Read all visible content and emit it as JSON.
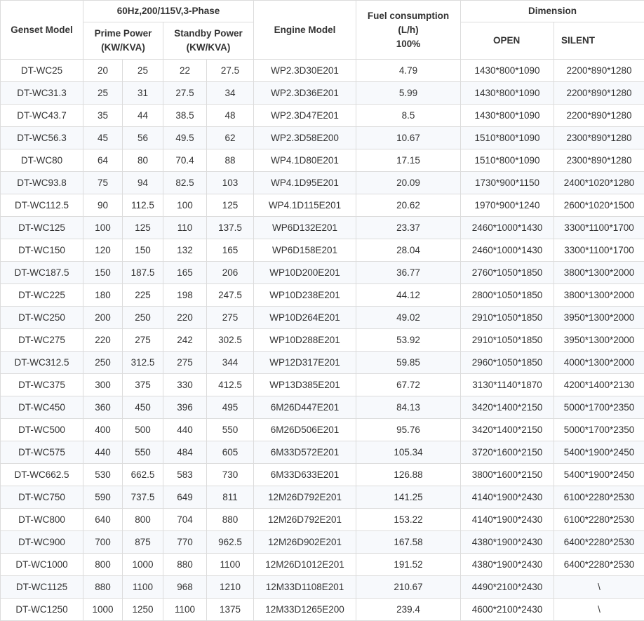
{
  "header": {
    "genset_model": "Genset Model",
    "phase_group": "60Hz,200/115V,3-Phase",
    "prime_power": "Prime Power\n(KW/KVA)",
    "standby_power": "Standby Power\n(KW/KVA)",
    "engine_model": "Engine Model",
    "fuel_consumption": "Fuel consumption\n(L/h)\n100%",
    "dimension": "Dimension",
    "open": "OPEN",
    "silent": "SILENT"
  },
  "rows": [
    [
      "DT-WC25",
      "20",
      "25",
      "22",
      "27.5",
      "WP2.3D30E201",
      "4.79",
      "1430*800*1090",
      "2200*890*1280"
    ],
    [
      "DT-WC31.3",
      "25",
      "31",
      "27.5",
      "34",
      "WP2.3D36E201",
      "5.99",
      "1430*800*1090",
      "2200*890*1280"
    ],
    [
      "DT-WC43.7",
      "35",
      "44",
      "38.5",
      "48",
      "WP2.3D47E201",
      "8.5",
      "1430*800*1090",
      "2200*890*1280"
    ],
    [
      "DT-WC56.3",
      "45",
      "56",
      "49.5",
      "62",
      "WP2.3D58E200",
      "10.67",
      "1510*800*1090",
      "2300*890*1280"
    ],
    [
      "DT-WC80",
      "64",
      "80",
      "70.4",
      "88",
      "WP4.1D80E201",
      "17.15",
      "1510*800*1090",
      "2300*890*1280"
    ],
    [
      "DT-WC93.8",
      "75",
      "94",
      "82.5",
      "103",
      "WP4.1D95E201",
      "20.09",
      "1730*900*1150",
      "2400*1020*1280"
    ],
    [
      "DT-WC112.5",
      "90",
      "112.5",
      "100",
      "125",
      "WP4.1D115E201",
      "20.62",
      "1970*900*1240",
      "2600*1020*1500"
    ],
    [
      "DT-WC125",
      "100",
      "125",
      "110",
      "137.5",
      "WP6D132E201",
      "23.37",
      "2460*1000*1430",
      "3300*1100*1700"
    ],
    [
      "DT-WC150",
      "120",
      "150",
      "132",
      "165",
      "WP6D158E201",
      "28.04",
      "2460*1000*1430",
      "3300*1100*1700"
    ],
    [
      "DT-WC187.5",
      "150",
      "187.5",
      "165",
      "206",
      "WP10D200E201",
      "36.77",
      "2760*1050*1850",
      "3800*1300*2000"
    ],
    [
      "DT-WC225",
      "180",
      "225",
      "198",
      "247.5",
      "WP10D238E201",
      "44.12",
      "2800*1050*1850",
      "3800*1300*2000"
    ],
    [
      "DT-WC250",
      "200",
      "250",
      "220",
      "275",
      "WP10D264E201",
      "49.02",
      "2910*1050*1850",
      "3950*1300*2000"
    ],
    [
      "DT-WC275",
      "220",
      "275",
      "242",
      "302.5",
      "WP10D288E201",
      "53.92",
      "2910*1050*1850",
      "3950*1300*2000"
    ],
    [
      "DT-WC312.5",
      "250",
      "312.5",
      "275",
      "344",
      "WP12D317E201",
      "59.85",
      "2960*1050*1850",
      "4000*1300*2000"
    ],
    [
      "DT-WC375",
      "300",
      "375",
      "330",
      "412.5",
      "WP13D385E201",
      "67.72",
      "3130*1140*1870",
      "4200*1400*2130"
    ],
    [
      "DT-WC450",
      "360",
      "450",
      "396",
      "495",
      "6M26D447E201",
      "84.13",
      "3420*1400*2150",
      "5000*1700*2350"
    ],
    [
      "DT-WC500",
      "400",
      "500",
      "440",
      "550",
      "6M26D506E201",
      "95.76",
      "3420*1400*2150",
      "5000*1700*2350"
    ],
    [
      "DT-WC575",
      "440",
      "550",
      "484",
      "605",
      "6M33D572E201",
      "105.34",
      "3720*1600*2150",
      "5400*1900*2450"
    ],
    [
      "DT-WC662.5",
      "530",
      "662.5",
      "583",
      "730",
      "6M33D633E201",
      "126.88",
      "3800*1600*2150",
      "5400*1900*2450"
    ],
    [
      "DT-WC750",
      "590",
      "737.5",
      "649",
      "811",
      "12M26D792E201",
      "141.25",
      "4140*1900*2430",
      "6100*2280*2530"
    ],
    [
      "DT-WC800",
      "640",
      "800",
      "704",
      "880",
      "12M26D792E201",
      "153.22",
      "4140*1900*2430",
      "6100*2280*2530"
    ],
    [
      "DT-WC900",
      "700",
      "875",
      "770",
      "962.5",
      "12M26D902E201",
      "167.58",
      "4380*1900*2430",
      "6400*2280*2530"
    ],
    [
      "DT-WC1000",
      "800",
      "1000",
      "880",
      "1100",
      "12M26D1012E201",
      "191.52",
      "4380*1900*2430",
      "6400*2280*2530"
    ],
    [
      "DT-WC1125",
      "880",
      "1100",
      "968",
      "1210",
      "12M33D1108E201",
      "210.67",
      "4490*2100*2430",
      "\\"
    ],
    [
      "DT-WC1250",
      "1000",
      "1250",
      "1100",
      "1375",
      "12M33D1265E200",
      "239.4",
      "4600*2100*2430",
      "\\"
    ]
  ]
}
